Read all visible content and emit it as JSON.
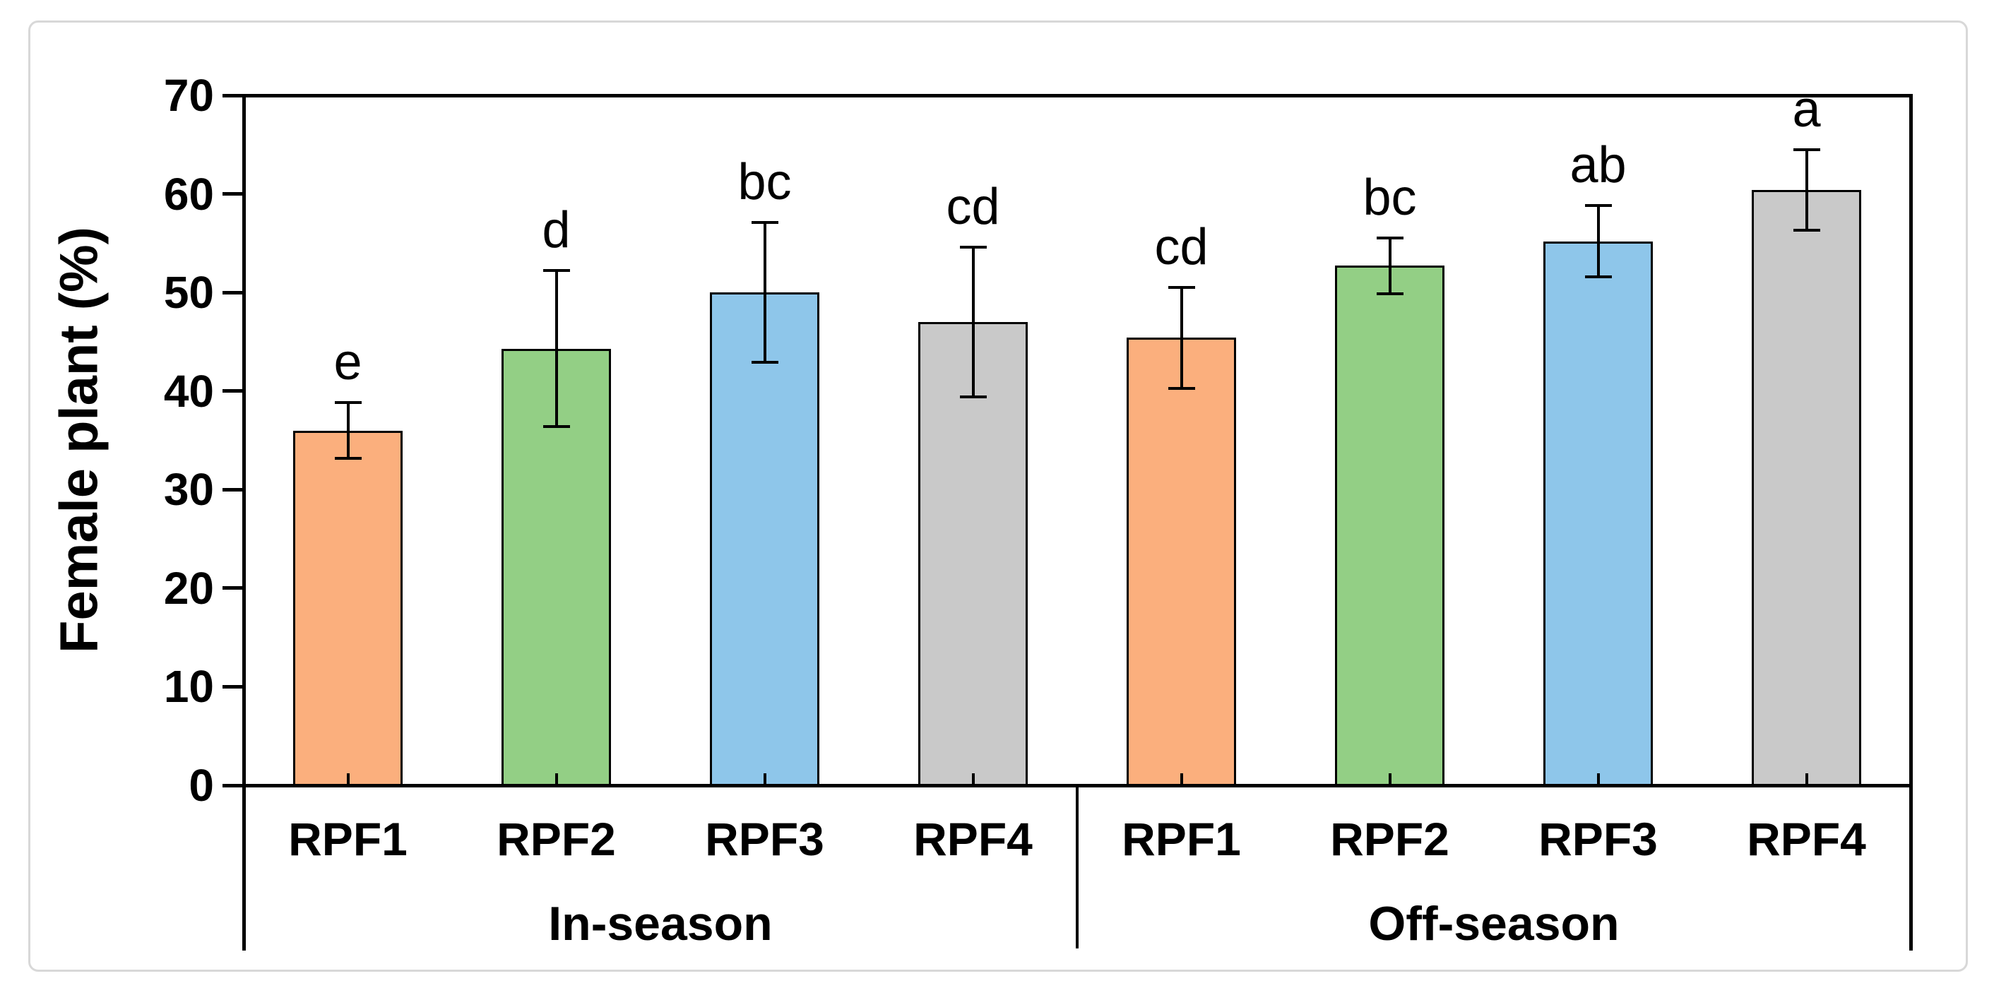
{
  "figure": {
    "background_color": "#ffffff",
    "frame_color": "#d8d8d8"
  },
  "chart_data": {
    "type": "bar",
    "title": "",
    "xlabel": "",
    "ylabel": "Female plant (%)",
    "ylim": [
      0,
      70
    ],
    "yticks": [
      0,
      10,
      20,
      30,
      40,
      50,
      60,
      70
    ],
    "grid": "off",
    "legend": "none",
    "error_bars": "symmetric, black caps",
    "groups": [
      {
        "label": "In-season",
        "categories": [
          "RPF1",
          "RPF2",
          "RPF3",
          "RPF4"
        ],
        "values": [
          36.0,
          44.3,
          50.0,
          47.0
        ],
        "errors": [
          2.8,
          7.9,
          7.1,
          7.6
        ],
        "sig_letters": [
          "e",
          "d",
          "bc",
          "cd"
        ]
      },
      {
        "label": "Off-season",
        "categories": [
          "RPF1",
          "RPF2",
          "RPF3",
          "RPF4"
        ],
        "values": [
          45.4,
          52.7,
          55.2,
          60.4
        ],
        "errors": [
          5.1,
          2.8,
          3.6,
          4.1
        ],
        "sig_letters": [
          "cd",
          "bc",
          "ab",
          "a"
        ]
      }
    ],
    "bar_colors": [
      "#FBAF7D",
      "#93CF85",
      "#8EC6EA",
      "#C9C9C9"
    ],
    "bar_outline_color": "#000000",
    "axis_color": "#000000"
  }
}
